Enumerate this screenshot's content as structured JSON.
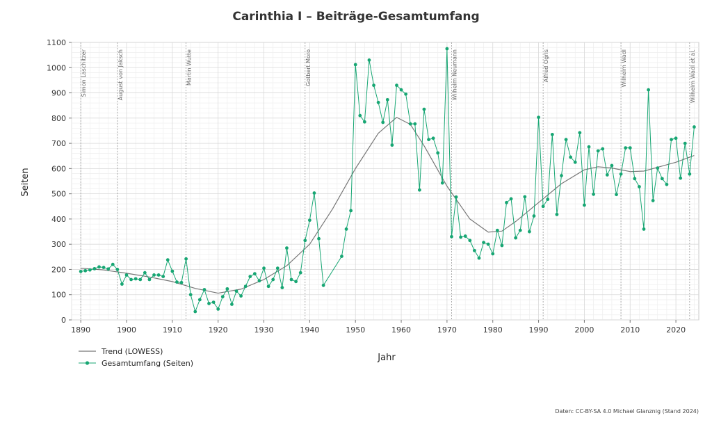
{
  "chart_data": {
    "type": "line",
    "title": "Carinthia I – Beiträge-Gesamtumfang",
    "xlabel": "Jahr",
    "ylabel": "Seiten",
    "xlim": [
      1888,
      2025
    ],
    "ylim": [
      0,
      1100
    ],
    "x_ticks": [
      1890,
      1900,
      1910,
      1920,
      1930,
      1940,
      1950,
      1960,
      1970,
      1980,
      1990,
      2000,
      2010,
      2020
    ],
    "y_ticks": [
      0,
      100,
      200,
      300,
      400,
      500,
      600,
      700,
      800,
      900,
      1000,
      1100
    ],
    "grid": true,
    "legend_position": "bottom-left",
    "colors": {
      "series": "#17a673",
      "trend": "#777777",
      "marker_line": "#999999"
    },
    "editor_markers": [
      {
        "year": 1890,
        "label": "Simon Laschitzer"
      },
      {
        "year": 1898,
        "label": "August von Jaksch"
      },
      {
        "year": 1913,
        "label": "Martin Wutte"
      },
      {
        "year": 1939,
        "label": "Gotbert Moro"
      },
      {
        "year": 1971,
        "label": "Wilhelm Neumann"
      },
      {
        "year": 1991,
        "label": "Alfred Ogris"
      },
      {
        "year": 2008,
        "label": "Wilhelm Wadl"
      },
      {
        "year": 2023,
        "label": "Wilhelm Wadl et al."
      }
    ],
    "series": [
      {
        "name": "Gesamtumfang (Seiten)",
        "points": [
          [
            1890,
            192
          ],
          [
            1891,
            195
          ],
          [
            1892,
            198
          ],
          [
            1893,
            203
          ],
          [
            1894,
            210
          ],
          [
            1895,
            208
          ],
          [
            1896,
            202
          ],
          [
            1897,
            220
          ],
          [
            1898,
            200
          ],
          [
            1899,
            142
          ],
          [
            1900,
            178
          ],
          [
            1901,
            160
          ],
          [
            1902,
            163
          ],
          [
            1903,
            160
          ],
          [
            1904,
            187
          ],
          [
            1905,
            160
          ],
          [
            1906,
            178
          ],
          [
            1907,
            178
          ],
          [
            1908,
            172
          ],
          [
            1909,
            238
          ],
          [
            1910,
            193
          ],
          [
            1911,
            150
          ],
          [
            1912,
            148
          ],
          [
            1913,
            242
          ],
          [
            1914,
            100
          ],
          [
            1915,
            33
          ],
          [
            1916,
            80
          ],
          [
            1917,
            120
          ],
          [
            1918,
            65
          ],
          [
            1919,
            70
          ],
          [
            1920,
            43
          ],
          [
            1921,
            92
          ],
          [
            1922,
            123
          ],
          [
            1923,
            62
          ],
          [
            1924,
            114
          ],
          [
            1925,
            95
          ],
          [
            1926,
            133
          ],
          [
            1927,
            172
          ],
          [
            1928,
            183
          ],
          [
            1929,
            155
          ],
          [
            1930,
            205
          ],
          [
            1931,
            133
          ],
          [
            1932,
            160
          ],
          [
            1933,
            205
          ],
          [
            1934,
            128
          ],
          [
            1935,
            285
          ],
          [
            1936,
            160
          ],
          [
            1937,
            152
          ],
          [
            1938,
            187
          ],
          [
            1939,
            315
          ],
          [
            1940,
            395
          ],
          [
            1941,
            503
          ],
          [
            1942,
            322
          ],
          [
            1943,
            137
          ],
          [
            1947,
            252
          ],
          [
            1948,
            360
          ],
          [
            1949,
            433
          ],
          [
            1950,
            1012
          ],
          [
            1951,
            810
          ],
          [
            1952,
            785
          ],
          [
            1953,
            1030
          ],
          [
            1954,
            930
          ],
          [
            1955,
            862
          ],
          [
            1956,
            783
          ],
          [
            1957,
            873
          ],
          [
            1958,
            693
          ],
          [
            1959,
            930
          ],
          [
            1960,
            912
          ],
          [
            1961,
            895
          ],
          [
            1962,
            777
          ],
          [
            1963,
            777
          ],
          [
            1964,
            515
          ],
          [
            1965,
            835
          ],
          [
            1966,
            715
          ],
          [
            1967,
            720
          ],
          [
            1968,
            662
          ],
          [
            1969,
            543
          ],
          [
            1970,
            1075
          ],
          [
            1971,
            330
          ],
          [
            1972,
            487
          ],
          [
            1973,
            328
          ],
          [
            1974,
            332
          ],
          [
            1975,
            315
          ],
          [
            1976,
            275
          ],
          [
            1977,
            245
          ],
          [
            1978,
            307
          ],
          [
            1979,
            300
          ],
          [
            1980,
            262
          ],
          [
            1981,
            355
          ],
          [
            1982,
            295
          ],
          [
            1983,
            465
          ],
          [
            1984,
            480
          ],
          [
            1985,
            325
          ],
          [
            1986,
            355
          ],
          [
            1987,
            488
          ],
          [
            1988,
            350
          ],
          [
            1989,
            412
          ],
          [
            1990,
            803
          ],
          [
            1991,
            450
          ],
          [
            1992,
            478
          ],
          [
            1993,
            735
          ],
          [
            1994,
            418
          ],
          [
            1995,
            572
          ],
          [
            1996,
            715
          ],
          [
            1997,
            645
          ],
          [
            1998,
            625
          ],
          [
            1999,
            742
          ],
          [
            2000,
            455
          ],
          [
            2001,
            686
          ],
          [
            2002,
            498
          ],
          [
            2003,
            670
          ],
          [
            2004,
            678
          ],
          [
            2005,
            575
          ],
          [
            2006,
            612
          ],
          [
            2007,
            497
          ],
          [
            2008,
            578
          ],
          [
            2009,
            682
          ],
          [
            2010,
            682
          ],
          [
            2011,
            560
          ],
          [
            2012,
            528
          ],
          [
            2013,
            360
          ],
          [
            2014,
            912
          ],
          [
            2015,
            473
          ],
          [
            2016,
            602
          ],
          [
            2017,
            560
          ],
          [
            2018,
            537
          ],
          [
            2019,
            715
          ],
          [
            2020,
            720
          ],
          [
            2021,
            562
          ],
          [
            2022,
            700
          ],
          [
            2023,
            578
          ],
          [
            2024,
            765
          ]
        ]
      },
      {
        "name": "Trend (LOWESS)",
        "points": [
          [
            1890,
            205
          ],
          [
            1895,
            198
          ],
          [
            1900,
            185
          ],
          [
            1905,
            170
          ],
          [
            1910,
            152
          ],
          [
            1915,
            125
          ],
          [
            1920,
            106
          ],
          [
            1925,
            122
          ],
          [
            1930,
            160
          ],
          [
            1935,
            215
          ],
          [
            1940,
            300
          ],
          [
            1945,
            440
          ],
          [
            1950,
            600
          ],
          [
            1955,
            740
          ],
          [
            1959,
            803
          ],
          [
            1962,
            775
          ],
          [
            1965,
            690
          ],
          [
            1970,
            530
          ],
          [
            1975,
            400
          ],
          [
            1979,
            348
          ],
          [
            1982,
            352
          ],
          [
            1985,
            390
          ],
          [
            1990,
            465
          ],
          [
            1995,
            540
          ],
          [
            2000,
            595
          ],
          [
            2003,
            607
          ],
          [
            2006,
            602
          ],
          [
            2010,
            588
          ],
          [
            2013,
            590
          ],
          [
            2016,
            605
          ],
          [
            2020,
            625
          ],
          [
            2024,
            652
          ]
        ]
      }
    ],
    "legend": [
      {
        "label": "Trend (LOWESS)",
        "type": "line"
      },
      {
        "label": "Gesamtumfang (Seiten)",
        "type": "line-marker"
      }
    ],
    "source": "Daten: CC-BY-SA 4.0 Michael Glanznig (Stand 2024)"
  }
}
